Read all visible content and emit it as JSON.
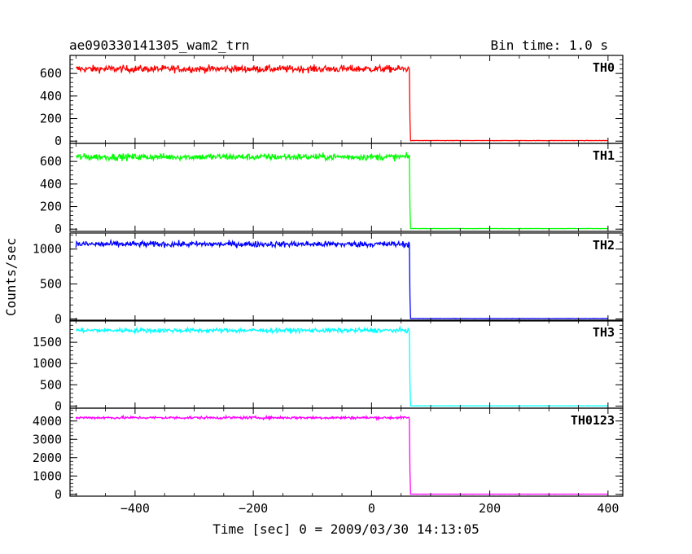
{
  "header": {
    "title": "ae090330141305_wam2_trn",
    "bin_time": "Bin time: 1.0 s"
  },
  "chart_data": {
    "type": "line",
    "title": "ae090330141305_wam2_trn",
    "subtitle": "Bin time: 1.0 s",
    "xlabel": "Time [sec] 0 = 2009/03/30 14:13:05",
    "ylabel": "Counts/sec",
    "xlim": [
      -510,
      425
    ],
    "x_ticks": [
      -400,
      -200,
      0,
      200,
      400
    ],
    "x_tick_labels": [
      "−400",
      "−200",
      "0",
      "200",
      "400"
    ],
    "grid": false,
    "drop_time": 65,
    "time_start": -500,
    "time_end": 400,
    "panels": [
      {
        "name": "TH0",
        "color": "#ff0000",
        "level": 640,
        "noise": 30,
        "after": 5,
        "ylim": [
          -20,
          760
        ],
        "y_ticks": [
          0,
          200,
          400,
          600
        ],
        "y_tick_labels": [
          "0",
          "200",
          "400",
          "600"
        ]
      },
      {
        "name": "TH1",
        "color": "#00ff00",
        "level": 640,
        "noise": 28,
        "after": 5,
        "ylim": [
          -20,
          760
        ],
        "y_ticks": [
          0,
          200,
          400,
          600
        ],
        "y_tick_labels": [
          "0",
          "200",
          "400",
          "600"
        ]
      },
      {
        "name": "TH2",
        "color": "#0000ff",
        "level": 1070,
        "noise": 40,
        "after": 5,
        "ylim": [
          -30,
          1230
        ],
        "y_ticks": [
          0,
          500,
          1000
        ],
        "y_tick_labels": [
          "0",
          "500",
          "1000"
        ]
      },
      {
        "name": "TH3",
        "color": "#00ffff",
        "level": 1780,
        "noise": 50,
        "after": 5,
        "ylim": [
          -50,
          2020
        ],
        "y_ticks": [
          0,
          500,
          1000,
          1500
        ],
        "y_tick_labels": [
          "0",
          "500",
          "1000",
          "1500"
        ]
      },
      {
        "name": "TH0123",
        "color": "#ff00ff",
        "level": 4180,
        "noise": 70,
        "after": 10,
        "ylim": [
          -100,
          4700
        ],
        "y_ticks": [
          0,
          1000,
          2000,
          3000,
          4000
        ],
        "y_tick_labels": [
          "0",
          "1000",
          "2000",
          "3000",
          "4000"
        ]
      }
    ]
  }
}
